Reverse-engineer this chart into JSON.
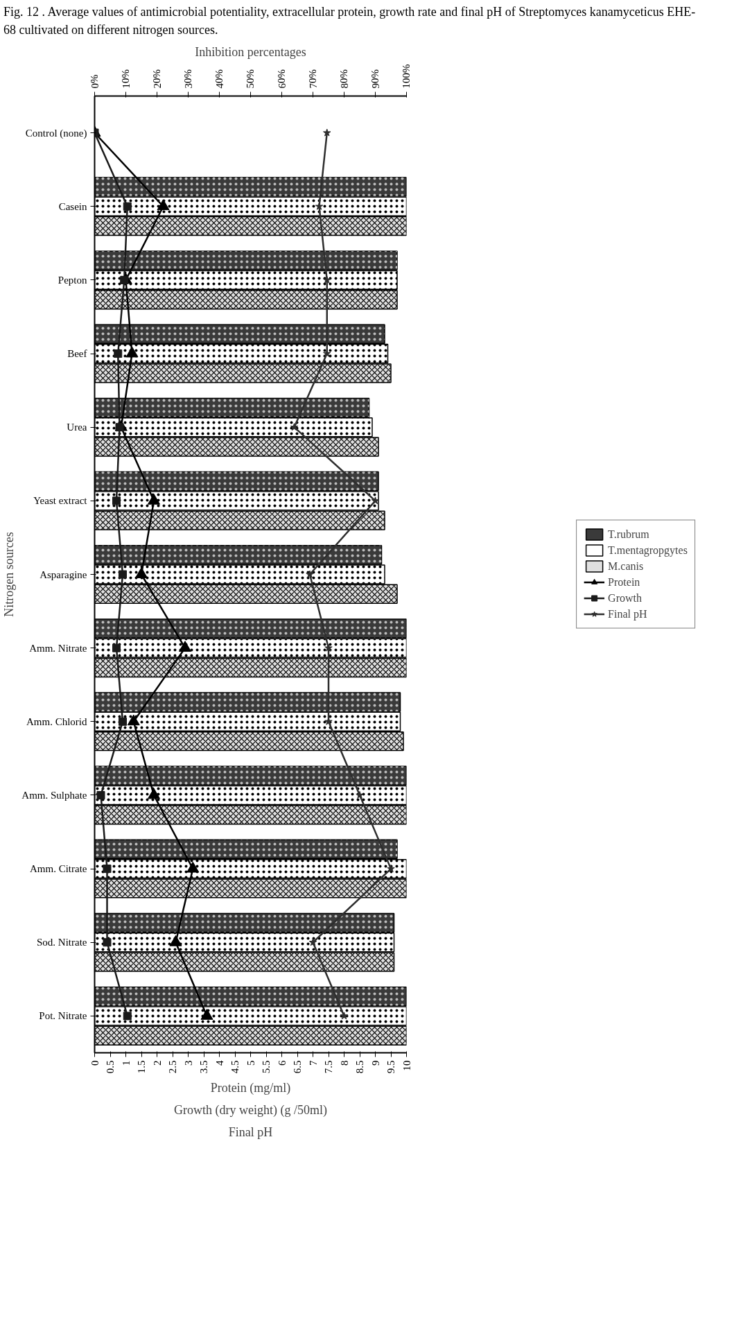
{
  "chart_data": {
    "type": "bar",
    "orientation": "horizontal",
    "title": "Fig. 12 . Average values of antimicrobial potentiality, extracellular protein, growth rate and final pH of Streptomyces kanamyceticus EHE-68 cultivated on different nitrogen sources.",
    "xlabel": "Protein (mg/ml)\nGrowth (dry weight) (g /50ml)\nFinal pH",
    "x2label": "Inhibition percentages",
    "ylabel": "Nitrogen sources",
    "categories": [
      "Control (none)",
      "Casein",
      "Pepton",
      "Beef",
      "Urea",
      "Yeast extract",
      "Asparagine",
      "Amm. Nitrate",
      "Amm. Chlorid",
      "Amm. Sulphate",
      "Amm. Citrate",
      "Sod. Nitrate",
      "Pot. Nitrate"
    ],
    "series": [
      {
        "name": "T.rubrum",
        "axis": "x2",
        "color": "#3a3a3a",
        "values": [
          null,
          100,
          97,
          93,
          88,
          91,
          92,
          100,
          98,
          100,
          97,
          96,
          100
        ]
      },
      {
        "name": "T.mentagropgytes",
        "axis": "x2",
        "color": "#ffffff",
        "values": [
          null,
          100,
          97,
          94,
          89,
          91,
          93,
          100,
          98,
          100,
          100,
          96,
          100
        ]
      },
      {
        "name": "M.canis",
        "axis": "x2",
        "color": "#e0e0e0",
        "values": [
          null,
          100,
          97,
          95,
          91,
          93,
          97,
          100,
          99,
          100,
          100,
          96,
          100
        ]
      },
      {
        "name": "Protein",
        "type": "line",
        "color": "#000000",
        "marker": "triangle",
        "values": [
          0,
          2.2,
          1.0,
          1.2,
          0.85,
          1.9,
          1.5,
          2.9,
          1.25,
          1.9,
          3.15,
          2.6,
          3.6
        ]
      },
      {
        "name": "Growth",
        "type": "line",
        "color": "#1a1a1a",
        "marker": "square",
        "values": [
          0,
          1.05,
          0.95,
          0.75,
          0.8,
          0.7,
          0.9,
          0.7,
          0.9,
          0.2,
          0.4,
          0.4,
          1.05
        ]
      },
      {
        "name": "Final pH",
        "type": "line",
        "color": "#2e2e2e",
        "marker": "star",
        "values": [
          7.45,
          7.2,
          7.45,
          7.45,
          6.4,
          9.0,
          6.9,
          7.5,
          7.5,
          8.5,
          9.5,
          7.0,
          8.0
        ]
      }
    ],
    "xlim": [
      0,
      10
    ],
    "xticks": [
      0,
      0.5,
      1,
      1.5,
      2,
      2.5,
      3,
      3.5,
      4,
      4.5,
      5,
      5.5,
      6,
      6.5,
      7,
      7.5,
      8,
      8.5,
      9,
      9.5,
      10
    ],
    "x2lim": [
      0,
      100
    ],
    "x2ticks": [
      {
        "value": 0,
        "label": "0%"
      },
      {
        "value": 10,
        "label": "10%"
      },
      {
        "value": 20,
        "label": "20%"
      },
      {
        "value": 30,
        "label": "30%"
      },
      {
        "value": 40,
        "label": "40%"
      },
      {
        "value": 50,
        "label": "50%"
      },
      {
        "value": 60,
        "label": "60%"
      },
      {
        "value": 70,
        "label": "70%"
      },
      {
        "value": 80,
        "label": "80%"
      },
      {
        "value": 90,
        "label": "90%"
      },
      {
        "value": 100,
        "label": "100%"
      }
    ],
    "legend": "right",
    "grid": false
  }
}
